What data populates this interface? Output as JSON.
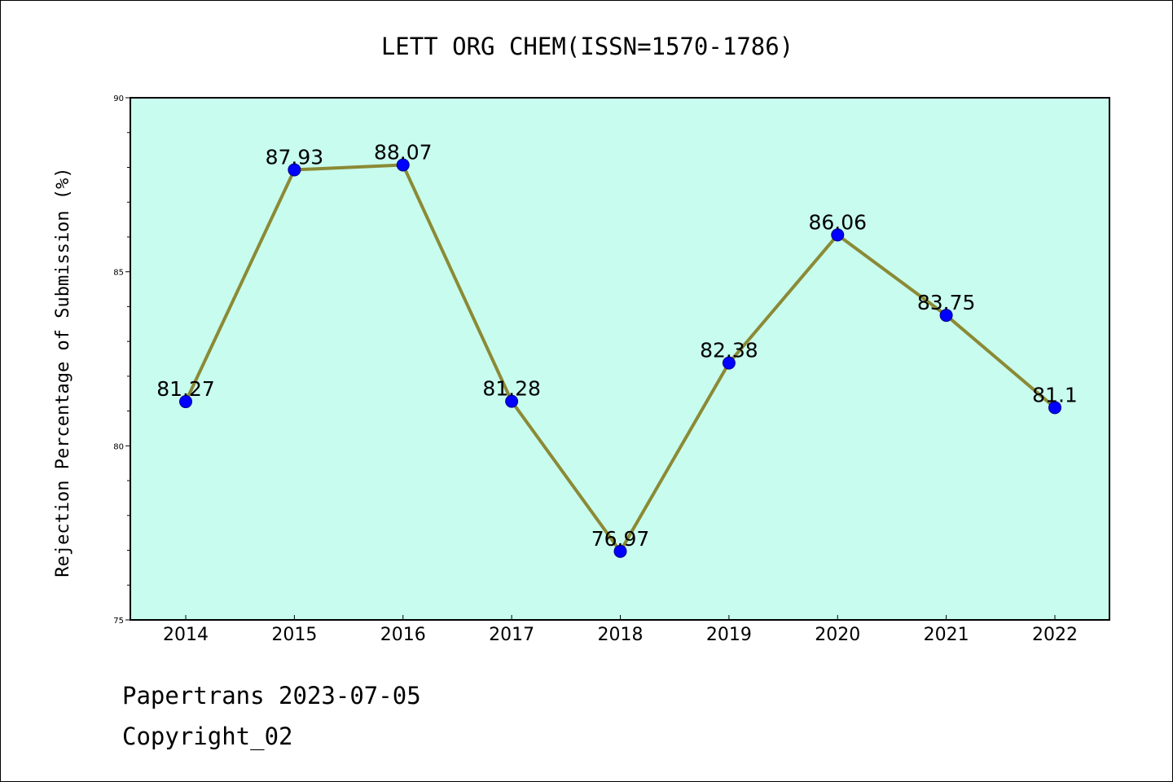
{
  "chart_data": {
    "type": "line",
    "title": "LETT ORG CHEM(ISSN=1570-1786)",
    "xlabel": "",
    "ylabel": "Rejection Percentage of Submission (%)",
    "categories": [
      "2014",
      "2015",
      "2016",
      "2017",
      "2018",
      "2019",
      "2020",
      "2021",
      "2022"
    ],
    "series": [
      {
        "values": [
          81.27,
          87.93,
          88.07,
          81.28,
          76.97,
          82.38,
          86.06,
          83.75,
          81.1
        ],
        "labels": [
          "81.27",
          "87.93",
          "88.07",
          "81.28",
          "76.97",
          "82.38",
          "86.06",
          "83.75",
          "81.1"
        ]
      }
    ],
    "ylim": [
      75,
      90
    ],
    "yticks": [
      75,
      80,
      85,
      90
    ],
    "ytick_labels": [
      "75",
      "80",
      "85",
      "90"
    ],
    "grid": false,
    "colors": {
      "plot_background": "#c8fcee",
      "line": "#8b8a35",
      "marker": "#0000ff"
    }
  },
  "footer": {
    "line1": "Papertrans 2023-07-05",
    "line2": "Copyright_02"
  }
}
